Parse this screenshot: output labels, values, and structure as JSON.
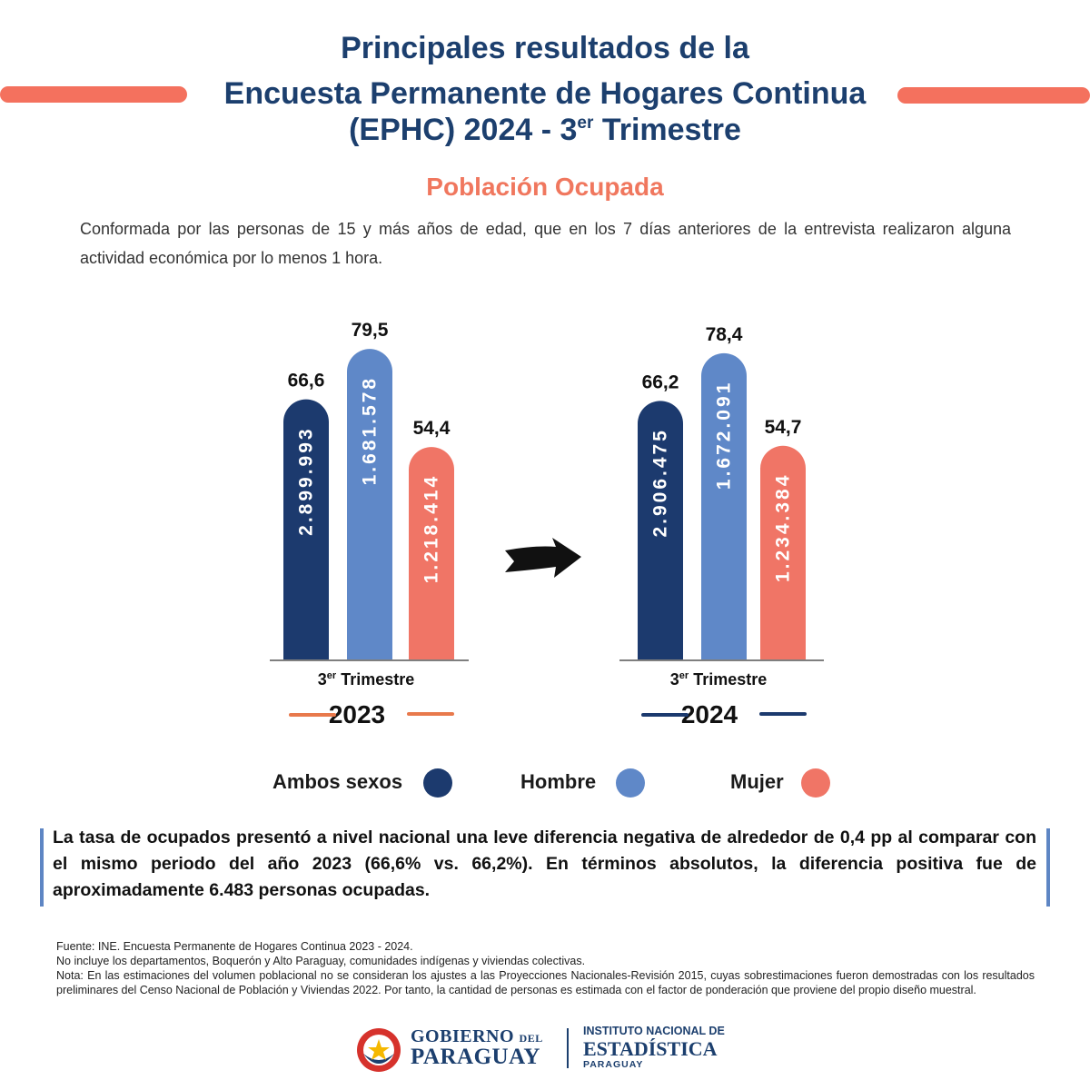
{
  "header": {
    "title_line1": "Principales resultados de la",
    "title_line2": "Encuesta Permanente de Hogares Continua",
    "title_line3_pre": "(EPHC) 2024 - 3",
    "title_line3_sup": "er",
    "title_line3_post": " Trimestre"
  },
  "section": {
    "subtitle": "Población Ocupada",
    "intro": "Conformada por las personas de 15 y más años de edad, que en los 7 días anteriores de la entrevista realizaron alguna actividad económica por lo menos 1 hora."
  },
  "chart_data": [
    {
      "type": "bar",
      "year": "2023",
      "category_label_pre": "3",
      "category_label_sup": "er",
      "category_label_post": " Trimestre",
      "series": [
        {
          "name": "Ambos sexos",
          "rate_label": "66,6",
          "rate": 66.6,
          "persons_label": "2.899.993",
          "persons": 2899993
        },
        {
          "name": "Hombre",
          "rate_label": "79,5",
          "rate": 79.5,
          "persons_label": "1.681.578",
          "persons": 1681578
        },
        {
          "name": "Mujer",
          "rate_label": "54,4",
          "rate": 54.4,
          "persons_label": "1.218.414",
          "persons": 1218414
        }
      ]
    },
    {
      "type": "bar",
      "year": "2024",
      "category_label_pre": "3",
      "category_label_sup": "er",
      "category_label_post": " Trimestre",
      "series": [
        {
          "name": "Ambos sexos",
          "rate_label": "66,2",
          "rate": 66.2,
          "persons_label": "2.906.475",
          "persons": 2906475
        },
        {
          "name": "Hombre",
          "rate_label": "78,4",
          "rate": 78.4,
          "persons_label": "1.672.091",
          "persons": 1672091
        },
        {
          "name": "Mujer",
          "rate_label": "54,7",
          "rate": 54.7,
          "persons_label": "1.234.384",
          "persons": 1234384
        }
      ]
    }
  ],
  "colors": {
    "ambos": "#1c3a6e",
    "hombre": "#5f88c8",
    "mujer": "#f07566",
    "title": "#1c3f6e",
    "accent": "#f4715e",
    "year2023_line": "#e8794c",
    "year2024_line": "#1c3a6e"
  },
  "legend": [
    {
      "label": "Ambos sexos",
      "color": "#1c3a6e"
    },
    {
      "label": "Hombre",
      "color": "#5f88c8"
    },
    {
      "label": "Mujer",
      "color": "#f07566"
    }
  ],
  "note": {
    "text": "La tasa de ocupados  presentó a nivel nacional una leve diferencia negativa  de alrededor de 0,4 pp al comparar con el mismo periodo del año 2023 (66,6% vs. 66,2%). En términos absolutos, la diferencia positiva fue de aproximadamente 6.483 personas ocupadas."
  },
  "footnotes": {
    "source": "Fuente: INE. Encuesta Permanente de Hogares Continua 2023 - 2024.",
    "exclusion": "No incluye los departamentos, Boquerón y Alto Paraguay, comunidades indígenas y viviendas colectivas.",
    "nota": "Nota: En las estimaciones del volumen poblacional no se consideran los ajustes a las Proyecciones Nacionales-Revisión 2015, cuyas sobrestimaciones fueron demostradas con los resultados preliminares del Censo Nacional de Población y Viviendas 2022. Por tanto, la cantidad de personas es estimada con el factor de ponderación que proviene del propio diseño muestral."
  },
  "logos": {
    "gobierno_1": "GOBIERNO",
    "gobierno_del": "DEL",
    "gobierno_2": "PARAGUAY",
    "ine_1": "INSTITUTO NACIONAL DE",
    "ine_2": "ESTADÍSTICA",
    "ine_3": "PARAGUAY"
  }
}
